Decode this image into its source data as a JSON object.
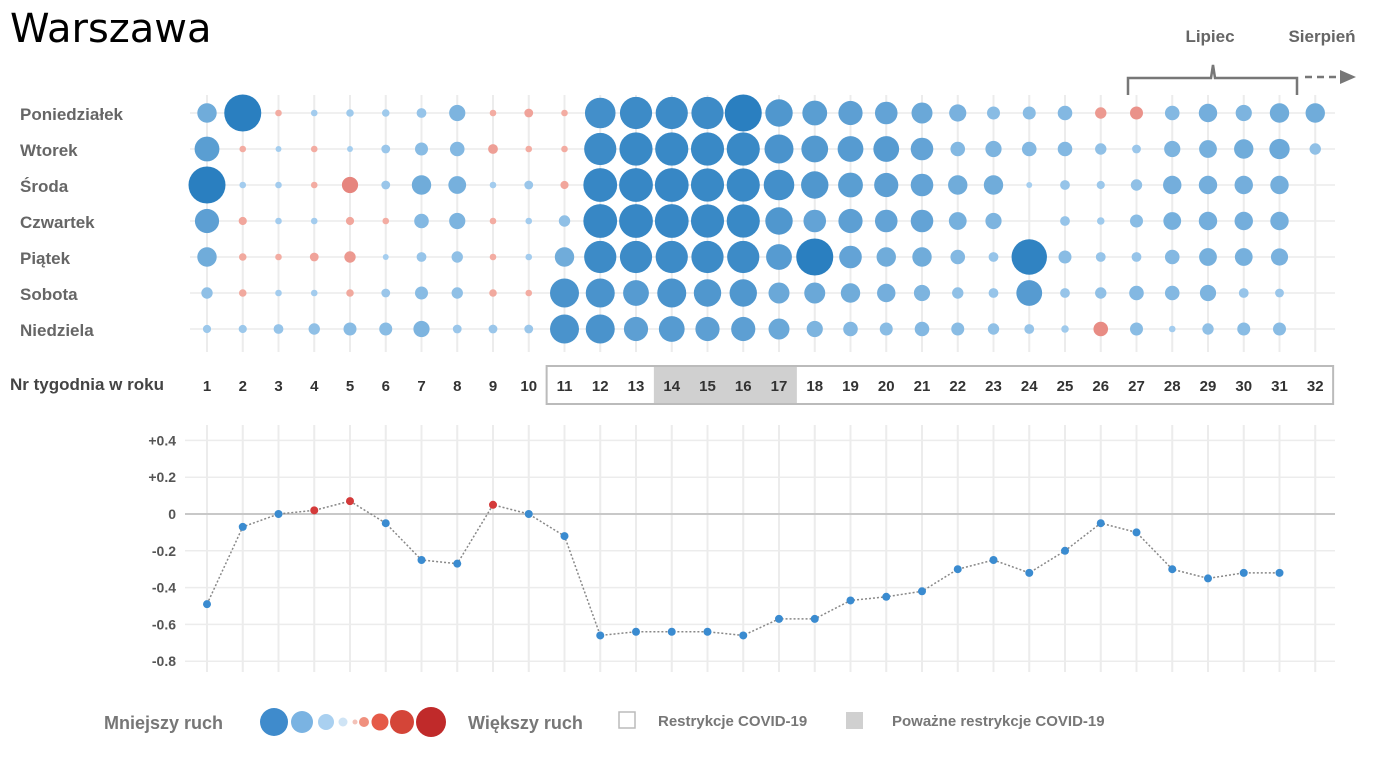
{
  "title": "Warszawa",
  "chart_data": [
    {
      "type": "bubble-grid",
      "row_labels": [
        "Poniedziałek",
        "Wtorek",
        "Środa",
        "Czwartek",
        "Piątek",
        "Sobota",
        "Niedziela"
      ],
      "x_label": "Nr tygodnia w roku",
      "weeks": [
        1,
        2,
        3,
        4,
        5,
        6,
        7,
        8,
        9,
        10,
        11,
        12,
        13,
        14,
        15,
        16,
        17,
        18,
        19,
        20,
        21,
        22,
        23,
        24,
        25,
        26,
        27,
        28,
        29,
        30,
        31,
        32
      ],
      "values": [
        [
          -0.45,
          -1.0,
          0.05,
          -0.05,
          -0.08,
          -0.08,
          -0.15,
          -0.35,
          0.05,
          0.12,
          0.05,
          -0.8,
          -0.85,
          -0.85,
          -0.85,
          -1.0,
          -0.7,
          -0.62,
          -0.6,
          -0.55,
          -0.5,
          -0.38,
          -0.25,
          -0.25,
          -0.3,
          0.2,
          0.25,
          -0.3,
          -0.42,
          -0.35,
          -0.45,
          -0.45
        ],
        [
          -0.62,
          0.05,
          -0.03,
          0.05,
          -0.03,
          -0.12,
          -0.25,
          -0.3,
          0.15,
          0.05,
          0.05,
          -0.85,
          -0.88,
          -0.88,
          -0.88,
          -0.88,
          -0.75,
          -0.68,
          -0.65,
          -0.65,
          -0.55,
          -0.3,
          -0.35,
          -0.3,
          -0.3,
          -0.2,
          -0.12,
          -0.35,
          -0.4,
          -0.45,
          -0.48,
          -0.2
        ],
        [
          -1.0,
          -0.05,
          -0.05,
          0.05,
          0.35,
          -0.12,
          -0.45,
          -0.4,
          -0.05,
          -0.12,
          0.1,
          -0.9,
          -0.9,
          -0.9,
          -0.88,
          -0.88,
          -0.8,
          -0.7,
          -0.62,
          -0.6,
          -0.55,
          -0.45,
          -0.45,
          -0.03,
          -0.15,
          -0.1,
          -0.2,
          -0.42,
          -0.42,
          -0.42,
          -0.42,
          null
        ],
        [
          -0.6,
          0.1,
          -0.05,
          -0.05,
          0.1,
          0.05,
          -0.3,
          -0.35,
          0.05,
          -0.05,
          -0.2,
          -0.9,
          -0.9,
          -0.9,
          -0.88,
          -0.88,
          -0.7,
          -0.55,
          -0.6,
          -0.55,
          -0.55,
          -0.4,
          -0.35,
          null,
          -0.15,
          -0.08,
          -0.25,
          -0.4,
          -0.42,
          -0.42,
          -0.42,
          null
        ],
        [
          -0.45,
          0.08,
          0.05,
          0.12,
          0.2,
          -0.03,
          -0.15,
          -0.2,
          0.05,
          -0.05,
          -0.45,
          -0.85,
          -0.85,
          -0.85,
          -0.85,
          -0.85,
          -0.65,
          -1.0,
          -0.55,
          -0.45,
          -0.45,
          -0.3,
          -0.15,
          -0.95,
          -0.25,
          -0.15,
          -0.15,
          -0.3,
          -0.4,
          -0.4,
          -0.38,
          null
        ],
        [
          -0.2,
          0.08,
          -0.05,
          -0.05,
          0.08,
          -0.12,
          -0.25,
          -0.2,
          0.08,
          0.05,
          -0.75,
          -0.75,
          -0.65,
          -0.75,
          -0.7,
          -0.7,
          -0.5,
          -0.5,
          -0.45,
          -0.42,
          -0.35,
          -0.2,
          -0.15,
          -0.65,
          -0.15,
          -0.2,
          -0.3,
          -0.3,
          -0.35,
          -0.15,
          -0.12,
          null
        ],
        [
          -0.1,
          -0.1,
          -0.15,
          -0.2,
          -0.25,
          -0.25,
          -0.35,
          -0.12,
          -0.12,
          -0.12,
          -0.75,
          -0.75,
          -0.6,
          -0.65,
          -0.6,
          -0.6,
          -0.5,
          -0.35,
          -0.3,
          -0.25,
          -0.3,
          -0.25,
          -0.2,
          -0.15,
          -0.08,
          0.3,
          -0.25,
          -0.05,
          -0.2,
          -0.25,
          -0.25,
          null
        ]
      ],
      "axis_top": [
        "Lipiec",
        "Sierpień"
      ],
      "restriction_weeks": [
        11,
        12,
        13,
        14,
        15,
        16,
        17,
        18,
        19,
        20,
        21,
        22,
        23,
        24,
        25,
        26,
        27,
        28,
        29,
        30,
        31
      ],
      "severe_restriction_weeks": [
        14,
        15,
        16,
        17
      ]
    },
    {
      "type": "line",
      "x": [
        1,
        2,
        3,
        4,
        5,
        6,
        7,
        8,
        9,
        10,
        11,
        12,
        13,
        14,
        15,
        16,
        17,
        18,
        19,
        20,
        21,
        22,
        23,
        24,
        25,
        26,
        27,
        28,
        29,
        30,
        31
      ],
      "y": [
        -0.49,
        -0.07,
        0.0,
        0.02,
        0.07,
        -0.05,
        -0.25,
        -0.27,
        0.05,
        0.0,
        -0.12,
        -0.66,
        -0.64,
        -0.64,
        -0.64,
        -0.66,
        -0.57,
        -0.57,
        -0.47,
        -0.45,
        -0.42,
        -0.3,
        -0.25,
        -0.32,
        -0.2,
        -0.05,
        -0.1,
        -0.3,
        -0.35,
        -0.32,
        -0.32
      ],
      "y_ticks": [
        "+0.4",
        "+0.2",
        "0",
        "-0.2",
        "-0.4",
        "-0.6",
        "-0.8"
      ],
      "ylim": [
        -0.8,
        0.4
      ]
    }
  ],
  "legend": {
    "less": "Mniejszy ruch",
    "more": "Większy ruch",
    "restrictions": "Restrykcje COVID-19",
    "severe": "Poważne restrykcje COVID-19"
  },
  "colors": {
    "blue_dark": "#2a7fc0",
    "blue_light": "#a9d0f0",
    "red_light": "#f5b3a8",
    "red_dark": "#c93030",
    "grid": "#ececec",
    "severe_fill": "#d0d0d0"
  }
}
